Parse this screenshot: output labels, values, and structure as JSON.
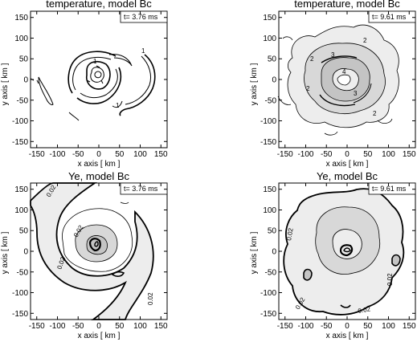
{
  "chart_data": [
    {
      "type": "contour",
      "title": "temperature, model Bc",
      "time_label": "t= 3.76 ms",
      "xlabel": "x axis [ km ]",
      "ylabel": "y axis [ km ]",
      "xlim": [
        -165,
        165
      ],
      "ylim": [
        -165,
        165
      ],
      "xticks": [
        "-150",
        "-100",
        "-50",
        "0",
        "50",
        "100",
        "150"
      ],
      "yticks": [
        "150",
        "100",
        "50",
        "0",
        "-50",
        "-100",
        "-150"
      ],
      "contour_labels": [
        "1",
        "1",
        "1"
      ],
      "filled": false
    },
    {
      "type": "contour",
      "title": "temperature, model Bc",
      "time_label": "t= 9.61 ms",
      "xlabel": "x axis [ km ]",
      "ylabel": "y axis [ km ]",
      "xlim": [
        -165,
        165
      ],
      "ylim": [
        -165,
        165
      ],
      "xticks": [
        "-150",
        "-100",
        "-50",
        "0",
        "50",
        "100",
        "150"
      ],
      "yticks": [
        "150",
        "100",
        "50",
        "0",
        "-50",
        "-100",
        "-150"
      ],
      "contour_labels": [
        "2",
        "2",
        "2",
        "2",
        "3",
        "3",
        "4"
      ],
      "filled": true
    },
    {
      "type": "contour",
      "title": "Ye, model Bc",
      "time_label": "t= 3.76 ms",
      "xlabel": "x axis [ km ]",
      "ylabel": "y axis [ km ]",
      "xlim": [
        -165,
        165
      ],
      "ylim": [
        -165,
        165
      ],
      "xticks": [
        "-150",
        "-100",
        "-50",
        "0",
        "50",
        "100",
        "150"
      ],
      "yticks": [
        "150",
        "100",
        "50",
        "0",
        "-50",
        "-100",
        "-150"
      ],
      "contour_labels": [
        "0.02",
        "0.02",
        "0.02",
        "0.02"
      ],
      "filled": true
    },
    {
      "type": "contour",
      "title": "Ye, model Bc",
      "time_label": "t= 9.61 ms",
      "xlabel": "x axis [ km ]",
      "ylabel": "y axis [ km ]",
      "xlim": [
        -165,
        165
      ],
      "ylim": [
        -165,
        165
      ],
      "xticks": [
        "-150",
        "-100",
        "-50",
        "0",
        "50",
        "100",
        "150"
      ],
      "yticks": [
        "150",
        "100",
        "50",
        "0",
        "-50",
        "-100",
        "-150"
      ],
      "contour_labels": [
        "0.02",
        "0.02",
        "0.02",
        "0.02"
      ],
      "filled": true
    }
  ]
}
